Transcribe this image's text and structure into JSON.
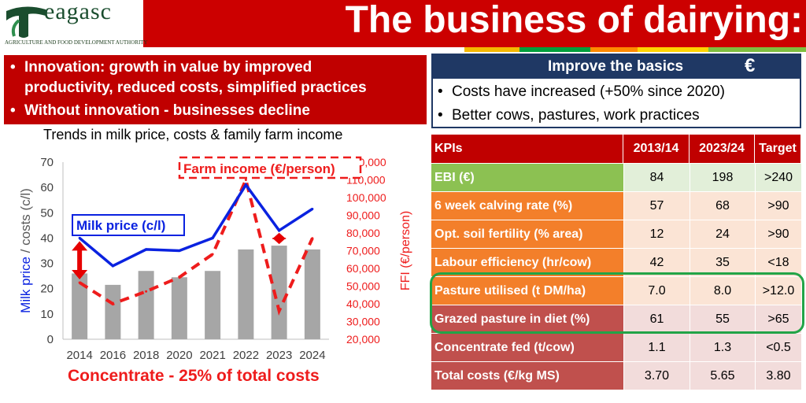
{
  "header": {
    "logo_text": "eagasc",
    "logo_subtitle": "AGRICULTURE AND FOOD DEVELOPMENT AUTHORITY",
    "title": "The business of dairying:",
    "colors": {
      "bar": "#cc0000",
      "logo_green": "#1a4d2e"
    },
    "stripe_colors": [
      "#f5b800",
      "#009f3c",
      "#ff8a00",
      "#ffd400",
      "#7fbf3f"
    ]
  },
  "left_banner": {
    "bullets": [
      "Innovation: growth in value by improved",
      "productivity, reduced costs, simplified practices",
      "Without innovation - businesses decline"
    ]
  },
  "chart_data": {
    "type": "bar",
    "title": "Trends in milk price, costs & family farm income",
    "categories": [
      "2014",
      "2016",
      "2018",
      "2020",
      "2021",
      "2022",
      "2023",
      "2024"
    ],
    "ylabel": "Milk price / costs (c/l)",
    "ylabel_parts": [
      "Milk price",
      " / costs (c/l)"
    ],
    "ylim": [
      0,
      70
    ],
    "yticks": [
      0,
      10,
      20,
      30,
      40,
      50,
      60,
      70
    ],
    "y2label": "FFI (€/person)",
    "y2lim": [
      20000,
      120000
    ],
    "y2ticks": [
      "20,000",
      "30,000",
      "40,000",
      "50,000",
      "60,000",
      "70,000",
      "80,000",
      "90,000",
      "100,000",
      "110,000",
      "120,000"
    ],
    "series": [
      {
        "name": "Costs (c/l)",
        "type": "bar",
        "axis": "left",
        "color": "#a6a6a6",
        "values": [
          26,
          21.5,
          27,
          24.5,
          27,
          35.5,
          37,
          35.5
        ]
      },
      {
        "name": "Milk price (c/l)",
        "type": "line",
        "axis": "left",
        "color": "#0a22e0",
        "values": [
          40,
          29,
          35.5,
          35,
          40,
          61,
          43,
          51.5
        ]
      },
      {
        "name": "Farm income (€/person)",
        "type": "line",
        "axis": "right",
        "dashed": true,
        "color": "#ee1c1c",
        "values": [
          52000,
          40000,
          47000,
          55000,
          68000,
          110000,
          36000,
          77000
        ]
      }
    ],
    "annotations": {
      "milk_label": "Milk price (c/l)",
      "income_label": "Farm income (€/person)",
      "note": "Concentrate - 25% of total costs"
    },
    "grid": false,
    "legend": "none"
  },
  "improve": {
    "title": "Improve the basics",
    "icon": "euro-icon",
    "icon_glyph": "€",
    "bullets": [
      "Costs have increased (+50% since 2020)",
      "Better cows, pastures, work practices"
    ]
  },
  "kpi": {
    "headers": [
      "KPIs",
      "2013/14",
      "2023/24",
      "Target"
    ],
    "rows": [
      {
        "label": "EBI (€)",
        "values": [
          "84",
          "198",
          ">240"
        ],
        "label_color": "#8cc152",
        "cell_color": "#e2efd9"
      },
      {
        "label": "6 week calving rate (%)",
        "values": [
          "57",
          "68",
          ">90"
        ],
        "label_color": "#f37f2a",
        "cell_color": "#fbe4d5"
      },
      {
        "label": "Opt. soil fertility (% area)",
        "values": [
          "12",
          "24",
          ">90"
        ],
        "label_color": "#f37f2a",
        "cell_color": "#fbe4d5"
      },
      {
        "label": "Labour efficiency (hr/cow)",
        "values": [
          "42",
          "35",
          "<18"
        ],
        "label_color": "#f37f2a",
        "cell_color": "#fbe4d5"
      },
      {
        "label": "Pasture utilised (t DM/ha)",
        "values": [
          "7.0",
          "8.0",
          ">12.0"
        ],
        "label_color": "#f37f2a",
        "cell_color": "#fbe4d5"
      },
      {
        "label": "Grazed pasture in diet (%)",
        "values": [
          "61",
          "55",
          ">65"
        ],
        "label_color": "#c0504d",
        "cell_color": "#f2dcdb"
      },
      {
        "label": "Concentrate fed (t/cow)",
        "values": [
          "1.1",
          "1.3",
          "<0.5"
        ],
        "label_color": "#c0504d",
        "cell_color": "#f2dcdb"
      },
      {
        "label": "Total costs (€/kg MS)",
        "values": [
          "3.70",
          "5.65",
          "3.80"
        ],
        "label_color": "#c0504d",
        "cell_color": "#f2dcdb"
      }
    ]
  }
}
